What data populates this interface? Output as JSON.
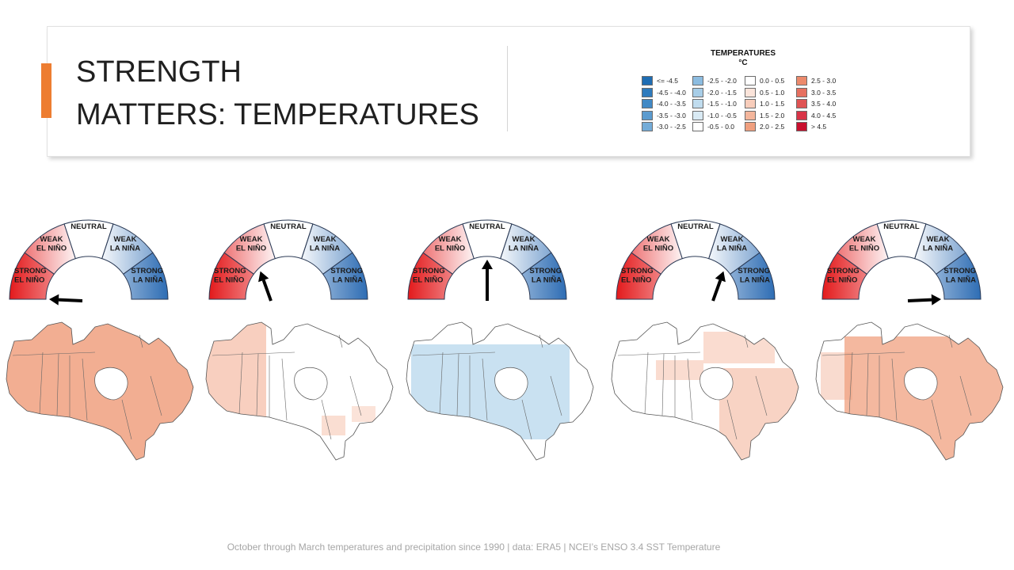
{
  "title": {
    "line1": "STRENGTH",
    "line2": "MATTERS: TEMPERATURES"
  },
  "legend": {
    "title_line1": "TEMPERATURES",
    "title_line2": "°C",
    "columns": [
      [
        {
          "label": "<= -4.5",
          "color": "#1f6db3"
        },
        {
          "label": "-4.5 - -4.0",
          "color": "#2f7bbd"
        },
        {
          "label": "-4.0 - -3.5",
          "color": "#4189c5"
        },
        {
          "label": "-3.5 - -3.0",
          "color": "#5b9bcf"
        },
        {
          "label": "-3.0 - -2.5",
          "color": "#74acd8"
        }
      ],
      [
        {
          "label": "-2.5 - -2.0",
          "color": "#8cbce0"
        },
        {
          "label": "-2.0 - -1.5",
          "color": "#a7cde7"
        },
        {
          "label": "-1.5 - -1.0",
          "color": "#c0dcee"
        },
        {
          "label": "-1.0 - -0.5",
          "color": "#d9eaf4"
        },
        {
          "label": "-0.5 - 0.0",
          "color": "#ffffff"
        }
      ],
      [
        {
          "label": "0.0 - 0.5",
          "color": "#ffffff"
        },
        {
          "label": "0.5 - 1.0",
          "color": "#fbe4da"
        },
        {
          "label": "1.0 - 1.5",
          "color": "#f8cdbb"
        },
        {
          "label": "1.5 - 2.0",
          "color": "#f4b69c"
        },
        {
          "label": "2.0 - 2.5",
          "color": "#f0a07f"
        }
      ],
      [
        {
          "label": "2.5 - 3.0",
          "color": "#ec8a6c"
        },
        {
          "label": "3.0 - 3.5",
          "color": "#e67060"
        },
        {
          "label": "3.5 - 4.0",
          "color": "#df5353"
        },
        {
          "label": "4.0 - 4.5",
          "color": "#d83447"
        },
        {
          "label": "> 4.5",
          "color": "#c8102e"
        }
      ]
    ]
  },
  "gauge": {
    "segments": [
      {
        "lines": [
          "STRONG",
          "EL NIÑO"
        ]
      },
      {
        "lines": [
          "WEAK",
          "EL NIÑO"
        ]
      },
      {
        "lines": [
          "NEUTRAL"
        ]
      },
      {
        "lines": [
          "WEAK",
          "LA NIÑA"
        ]
      },
      {
        "lines": [
          "STRONG",
          "LA NIÑA"
        ]
      }
    ],
    "colors": {
      "el_nino": "#e31a1c",
      "la_nina": "#2e6db4",
      "neutral": "#ffffff",
      "outline": "#2b3a55"
    }
  },
  "panels": [
    {
      "state": "STRONG EL NIÑO",
      "pointer_segment": 0,
      "map_fill": "#f0a07f",
      "map_opacity": 0.85,
      "map_pattern": "widespread-warm"
    },
    {
      "state": "WEAK EL NIÑO",
      "pointer_segment": 1,
      "map_fill": "#f4b69c",
      "map_opacity": 0.65,
      "map_pattern": "west-warm"
    },
    {
      "state": "NEUTRAL",
      "pointer_segment": 2,
      "map_fill": "#c0dcee",
      "map_opacity": 0.85,
      "map_pattern": "cool"
    },
    {
      "state": "WEAK LA NIÑA",
      "pointer_segment": 3,
      "map_fill": "#f4b69c",
      "map_opacity": 0.6,
      "map_pattern": "east-warm"
    },
    {
      "state": "STRONG LA NIÑA",
      "pointer_segment": 4,
      "map_fill": "#f0a07f",
      "map_opacity": 0.75,
      "map_pattern": "north-east-warm"
    }
  ],
  "caption": "October through March temperatures and precipitation since 1990 | data: ERA5 | NCEI’s ENSO 3.4 SST Temperature"
}
